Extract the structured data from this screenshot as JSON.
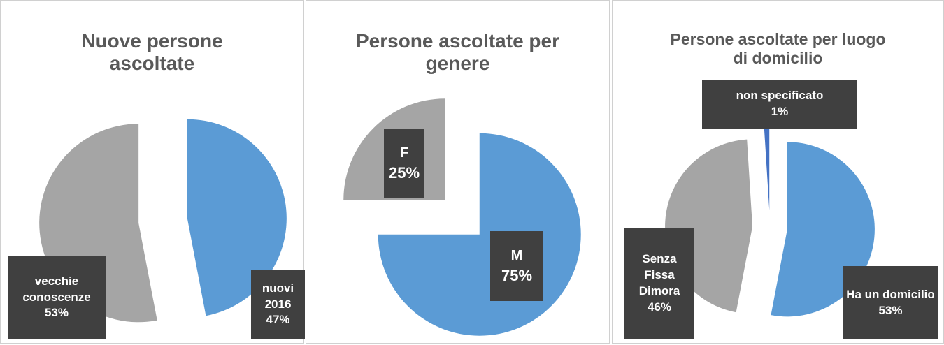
{
  "chart_data": [
    {
      "type": "pie",
      "title": "Nuove persone ascoltate",
      "categories": [
        "nuovi 2016",
        "vecchie conoscenze"
      ],
      "values": [
        47,
        53
      ],
      "value_labels": [
        "47%",
        "53%"
      ],
      "colors": [
        "#5b9bd5",
        "#a5a5a5"
      ]
    },
    {
      "type": "pie",
      "title": "Persone ascoltate per genere",
      "categories": [
        "M",
        "F"
      ],
      "values": [
        75,
        25
      ],
      "value_labels": [
        "75%",
        "25%"
      ],
      "colors": [
        "#5b9bd5",
        "#a5a5a5"
      ]
    },
    {
      "type": "pie",
      "title": "Persone ascoltate per luogo di domicilio",
      "categories": [
        "Ha un domicilio",
        "Senza Fissa Dimora",
        "non specificato"
      ],
      "values": [
        53,
        46,
        1
      ],
      "value_labels": [
        "53%",
        "46%",
        "1%"
      ],
      "colors": [
        "#5b9bd5",
        "#a5a5a5",
        "#4472c4"
      ]
    }
  ]
}
